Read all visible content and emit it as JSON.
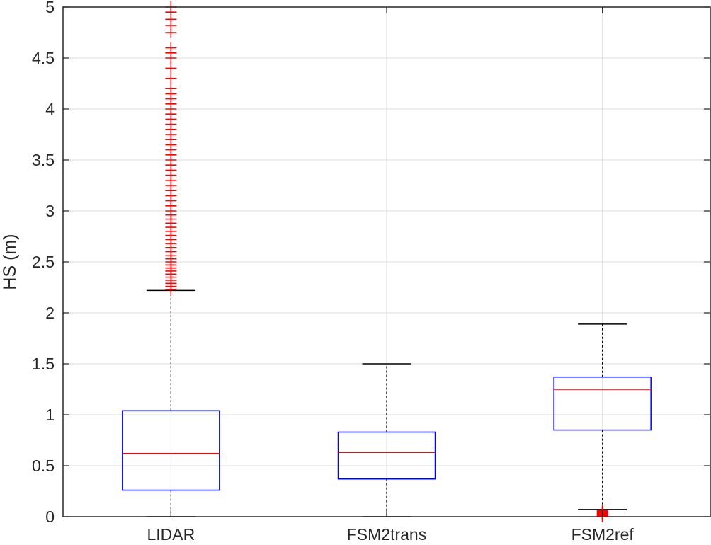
{
  "chart_data": {
    "type": "boxplot",
    "title": "",
    "xlabel": "",
    "ylabel": "HS (m)",
    "ylim": [
      0,
      5
    ],
    "yticks": [
      0,
      0.5,
      1,
      1.5,
      2,
      2.5,
      3,
      3.5,
      4,
      4.5,
      5
    ],
    "ytick_labels": [
      "0",
      "0.5",
      "1",
      "1.5",
      "2",
      "2.5",
      "3",
      "3.5",
      "4",
      "4.5",
      "5"
    ],
    "grid": true,
    "categories": [
      "LIDAR",
      "FSM2trans",
      "FSM2ref"
    ],
    "boxes": [
      {
        "label": "LIDAR",
        "whisker_low": 0.0,
        "q1": 0.26,
        "median": 0.62,
        "q3": 1.04,
        "whisker_high": 2.22,
        "outliers": [
          2.23,
          2.26,
          2.29,
          2.32,
          2.35,
          2.38,
          2.41,
          2.44,
          2.47,
          2.5,
          2.53,
          2.56,
          2.6,
          2.64,
          2.68,
          2.72,
          2.76,
          2.8,
          2.84,
          2.88,
          2.92,
          2.96,
          3.0,
          3.05,
          3.1,
          3.15,
          3.2,
          3.25,
          3.3,
          3.35,
          3.4,
          3.45,
          3.5,
          3.55,
          3.6,
          3.65,
          3.7,
          3.75,
          3.8,
          3.85,
          3.9,
          3.95,
          4.0,
          4.05,
          4.1,
          4.15,
          4.2,
          4.3,
          4.4,
          4.5,
          4.55,
          4.6,
          4.75,
          4.82,
          4.88,
          4.95,
          5.0
        ]
      },
      {
        "label": "FSM2trans",
        "whisker_low": 0.0,
        "q1": 0.37,
        "median": 0.63,
        "q3": 0.83,
        "whisker_high": 1.5,
        "outliers": []
      },
      {
        "label": "FSM2ref",
        "whisker_low": 0.07,
        "q1": 0.85,
        "median": 1.25,
        "q3": 1.37,
        "whisker_high": 1.89,
        "outliers": [
          0.0,
          0.01,
          0.02,
          0.03,
          0.04,
          0.05,
          0.06
        ]
      }
    ],
    "colors": {
      "box": "#0000ff",
      "median": "#ff0000",
      "outlier": "#ff0000",
      "whisker": "#000000",
      "grid": "#dcdcdc",
      "axis": "#262626"
    }
  }
}
